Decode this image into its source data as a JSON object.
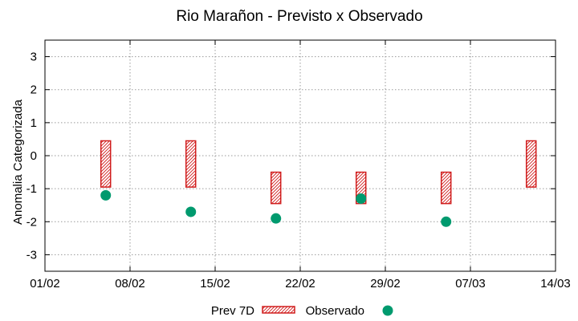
{
  "chart_data": {
    "type": "range-and-scatter",
    "title": "Rio Marañon - Previsto x Observado",
    "xlabel": "",
    "ylabel": "Anomalia Categorizada",
    "x_ticks": [
      "01/02",
      "08/02",
      "15/02",
      "22/02",
      "29/02",
      "07/03",
      "14/03"
    ],
    "xlim": [
      "01/02",
      "14/03"
    ],
    "y_ticks": [
      "3",
      "2",
      "1",
      "0",
      "-1",
      "-2",
      "-3"
    ],
    "ylim": [
      -3.5,
      3.5
    ],
    "grid": true,
    "legend_position": "bottom",
    "series": [
      {
        "name": "Prev 7D",
        "style": "hatched-range",
        "color": "#d01c1c",
        "ranges": [
          {
            "x": "06/02",
            "low": -0.95,
            "high": 0.45
          },
          {
            "x": "13/02",
            "low": -0.95,
            "high": 0.45
          },
          {
            "x": "20/02",
            "low": -1.45,
            "high": -0.5
          },
          {
            "x": "27/02",
            "low": -1.45,
            "high": -0.5
          },
          {
            "x": "05/03",
            "low": -1.45,
            "high": -0.5
          },
          {
            "x": "12/03",
            "low": -0.95,
            "high": 0.45
          }
        ]
      },
      {
        "name": "Observado",
        "style": "filled-circle",
        "color": "#009a6e",
        "points": [
          {
            "x": "06/02",
            "y": -1.2
          },
          {
            "x": "13/02",
            "y": -1.7
          },
          {
            "x": "20/02",
            "y": -1.9
          },
          {
            "x": "27/02",
            "y": -1.3
          },
          {
            "x": "05/03",
            "y": -2.0
          }
        ]
      }
    ]
  }
}
